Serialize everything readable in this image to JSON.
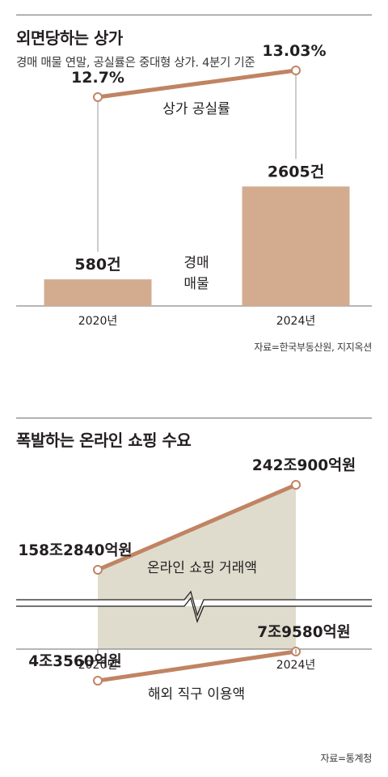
{
  "top": {
    "title": "외면당하는 상가",
    "subtitle": "경매 매물 연말, 공실률은 중대형 상가. 4분기 기준",
    "source": "자료=한국부동산원, 지지옥션"
  },
  "bottom": {
    "title": "폭발하는 온라인 쇼핑 수요",
    "source": "자료=통계청"
  },
  "chart_data": [
    {
      "type": "bar",
      "title": "외면당하는 상가",
      "categories": [
        "2020년",
        "2024년"
      ],
      "series": [
        {
          "name": "경매 매물",
          "values": [
            580,
            2605
          ],
          "labels": [
            "580건",
            "2605건"
          ]
        },
        {
          "name": "상가 공실률",
          "type": "line",
          "values": [
            12.7,
            13.03
          ],
          "labels": [
            "12.7%",
            "13.03%"
          ]
        }
      ],
      "bar_label_lines": [
        "경매",
        "매물"
      ],
      "ylim": [
        0,
        3000
      ],
      "line_ylim": [
        12.0,
        13.5
      ],
      "colors": {
        "bar": "#d3ac90",
        "line": "#c08463",
        "marker_fill": "#ffffff"
      }
    },
    {
      "type": "line",
      "title": "폭발하는 온라인 쇼핑 수요",
      "categories": [
        "2020년",
        "2024년"
      ],
      "broken_axis": true,
      "series": [
        {
          "name": "온라인 쇼핑 거래액",
          "values": [
            158.284,
            242.09
          ],
          "labels": [
            "158조2840억원",
            "242조900억원"
          ],
          "unit": "조원"
        },
        {
          "name": "해외 직구 이용액",
          "values": [
            4.356,
            7.958
          ],
          "labels": [
            "4조3560억원",
            "7조9580억원"
          ],
          "unit": "조원"
        }
      ],
      "colors": {
        "line": "#c08463",
        "area": "#dfdccd",
        "marker_fill": "#ffffff"
      }
    }
  ]
}
